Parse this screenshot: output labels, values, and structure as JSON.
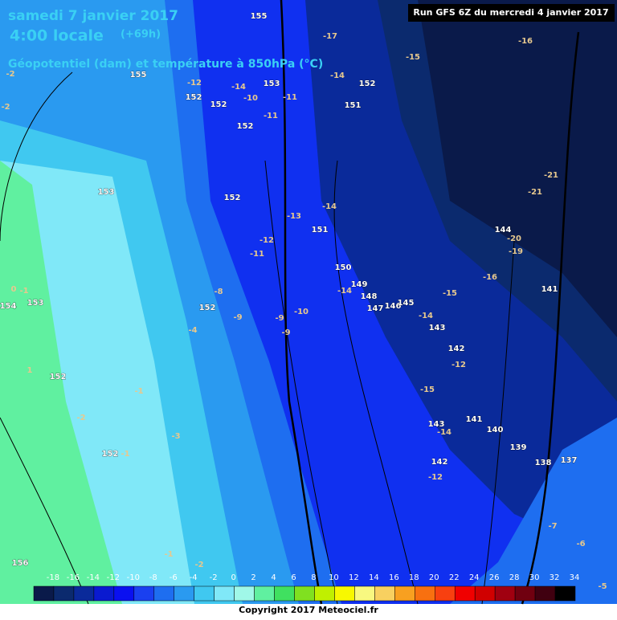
{
  "header": {
    "title": "samedi 7 janvier 2017",
    "time": "4:00 locale",
    "lead": "(+69h)",
    "subtitle": "Géopotentiel (dam) et température à 850hPa (°C)",
    "run": "Run GFS 6Z du mercredi 4 janvier 2017"
  },
  "map": {
    "geopotential_labels": [
      "155",
      "152",
      "151",
      "152",
      "152",
      "152",
      "151",
      "150",
      "149",
      "148",
      "147",
      "146",
      "145",
      "143",
      "142",
      "141",
      "143",
      "140",
      "139",
      "138",
      "137",
      "142",
      "144",
      "141",
      "153",
      "152",
      "153",
      "154",
      "153",
      "152",
      "152",
      "152",
      "156",
      "155"
    ],
    "temperature_labels": [
      "-16",
      "-15",
      "-21",
      "-21",
      "-20",
      "-19",
      "-16",
      "-15",
      "-14",
      "-12",
      "-15",
      "-14",
      "-12",
      "-17",
      "-14",
      "-14",
      "-13",
      "-12",
      "-11",
      "-11",
      "-11",
      "-10",
      "-14",
      "-12",
      "-10",
      "-9",
      "-9",
      "-9",
      "-8",
      "-14",
      "-1",
      "-2",
      "-1",
      "-3",
      "-1",
      "-2",
      "1",
      "0",
      "-1",
      "-2",
      "-2",
      "-7",
      "-6",
      "-5",
      "-4"
    ]
  },
  "legend": {
    "labels": [
      "-18",
      "-16",
      "-14",
      "-12",
      "-10",
      "-8",
      "-6",
      "-4",
      "-2",
      "0",
      "2",
      "4",
      "6",
      "8",
      "10",
      "12",
      "14",
      "16",
      "18",
      "20",
      "22",
      "24",
      "26",
      "28",
      "30",
      "32",
      "34"
    ],
    "colors": [
      "#0a1a4a",
      "#0b2a6e",
      "#0a2a9a",
      "#0a1ad0",
      "#0a10f0",
      "#1a40f0",
      "#1e6ef0",
      "#2a9af0",
      "#40c8f0",
      "#80e8f8",
      "#a0f8e8",
      "#60f0a0",
      "#40e060",
      "#80e020",
      "#c0f000",
      "#f8f800",
      "#f8f880",
      "#f8d060",
      "#f8a020",
      "#f87010",
      "#f84010",
      "#f00000",
      "#d00000",
      "#a00010",
      "#700010",
      "#400010",
      "#000000"
    ]
  },
  "footer": "Copyright 2017 Meteociel.fr"
}
